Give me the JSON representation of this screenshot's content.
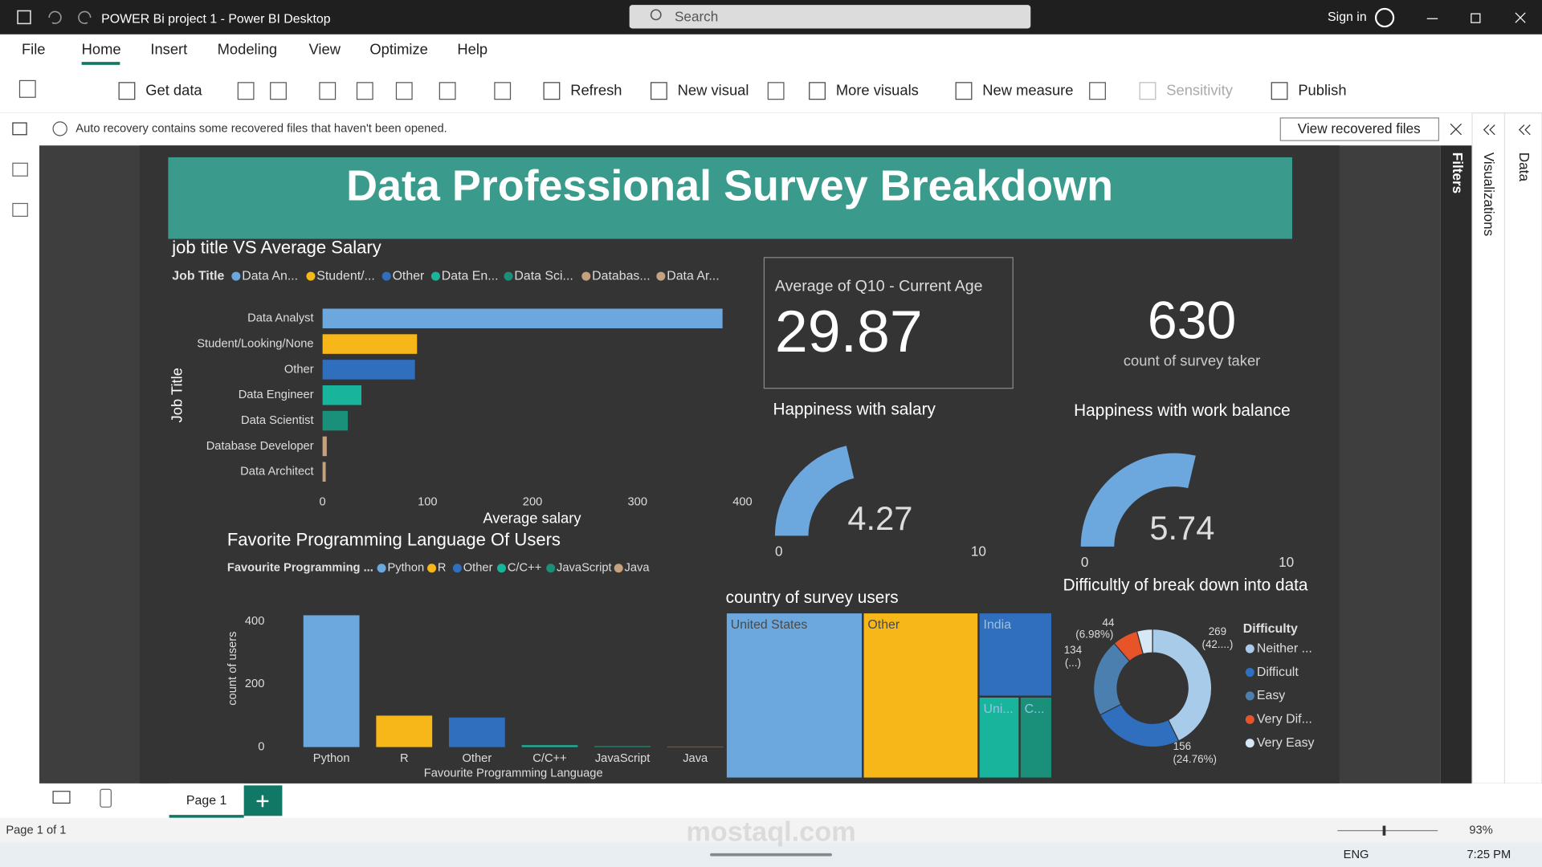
{
  "window": {
    "title": "POWER Bi project 1 - Power BI Desktop",
    "search": "Search",
    "sign_in": "Sign in"
  },
  "menu": [
    "File",
    "Home",
    "Insert",
    "Modeling",
    "View",
    "Optimize",
    "Help"
  ],
  "ribbon": [
    "Get data",
    "Refresh",
    "New visual",
    "More visuals",
    "New measure",
    "Sensitivity",
    "Publish"
  ],
  "notice": {
    "text": "Auto recovery contains some recovered files that haven't been opened.",
    "button": "View recovered files"
  },
  "panes": [
    "Filters",
    "Visualizations",
    "Data"
  ],
  "report": {
    "title": "Data Professional Survey Breakdown",
    "salary_chart": {
      "type": "bar",
      "title": "job title VS Average Salary",
      "legend_title": "Job Title",
      "legend_labels": [
        "Data An...",
        "Student/...",
        "Other",
        "Data En...",
        "Data Sci...",
        "Databas...",
        "Data Ar..."
      ],
      "categories": [
        "Data Analyst",
        "Student/Looking/None",
        "Other",
        "Data Engineer",
        "Data Scientist",
        "Database Developer",
        "Data Architect"
      ],
      "values": [
        381,
        90,
        88,
        37,
        24,
        4,
        3
      ],
      "colors": [
        "#6ca8de",
        "#f7b718",
        "#2f6fbd",
        "#18b59c",
        "#1a8f7a",
        "#c4a27f",
        "#c4a27f"
      ],
      "xlim": [
        0,
        400
      ],
      "xticks": [
        0,
        100,
        200,
        300,
        400
      ],
      "xlabel": "Average salary",
      "ylabel": "Job Title"
    },
    "age_card": {
      "label": "Average of Q10 - Current Age",
      "value": 29.87
    },
    "count_card": {
      "value": 630,
      "label": "count of survey taker"
    },
    "salary_gauge": {
      "type": "gauge",
      "title": "Happiness with salary",
      "value": 4.27,
      "min": 0,
      "max": 10,
      "color": "#6ca8de"
    },
    "balance_gauge": {
      "type": "gauge",
      "title": "Happiness with work balance",
      "value": 5.74,
      "min": 0,
      "max": 10,
      "color": "#6ca8de"
    },
    "language_chart": {
      "type": "bar",
      "title": "Favorite Programming Language Of Users",
      "legend_title": "Favourite Programming ...",
      "categories": [
        "Python",
        "R",
        "Other",
        "C/C++",
        "JavaScript",
        "Java"
      ],
      "values": [
        419,
        100,
        94,
        6,
        3,
        1
      ],
      "colors": [
        "#6ca8de",
        "#f7b718",
        "#2f6fbd",
        "#18b59c",
        "#1a8f7a",
        "#c4a27f"
      ],
      "ylim": [
        0,
        440
      ],
      "yticks": [
        0,
        200,
        400
      ],
      "xlabel": "Favourite Programming Language",
      "ylabel": "count of users"
    },
    "country_treemap": {
      "type": "treemap",
      "title": "country of survey users",
      "labels": [
        "United States",
        "Other",
        "India",
        "Uni...",
        "C..."
      ],
      "values": [
        264,
        223,
        72,
        39,
        31
      ],
      "colors": [
        "#6ca8de",
        "#f7b718",
        "#2f6fbd",
        "#18b59c",
        "#1a8f7a"
      ]
    },
    "difficulty_donut": {
      "type": "pie",
      "title": "Difficultly of break down into data",
      "legend_title": "Difficulty",
      "legend_labels": [
        "Neither ...",
        "Difficult",
        "Easy",
        "Very Dif...",
        "Very Easy"
      ],
      "values": [
        269,
        156,
        134,
        44,
        27
      ],
      "pct_labels": [
        "(42....)",
        "(24.76%)",
        "(...)",
        "(6.98%)",
        null
      ],
      "colors": [
        "#a9cbea",
        "#2f6fbd",
        "#4a7fb0",
        "#e8542a",
        "#d6e7f6"
      ]
    }
  },
  "footer": {
    "page_tab": "Page 1",
    "status": "Page 1 of 1",
    "zoom": "93%"
  },
  "taskbar": {
    "language": "ENG",
    "time": "7:25 PM"
  },
  "watermark": "mostaql.com"
}
